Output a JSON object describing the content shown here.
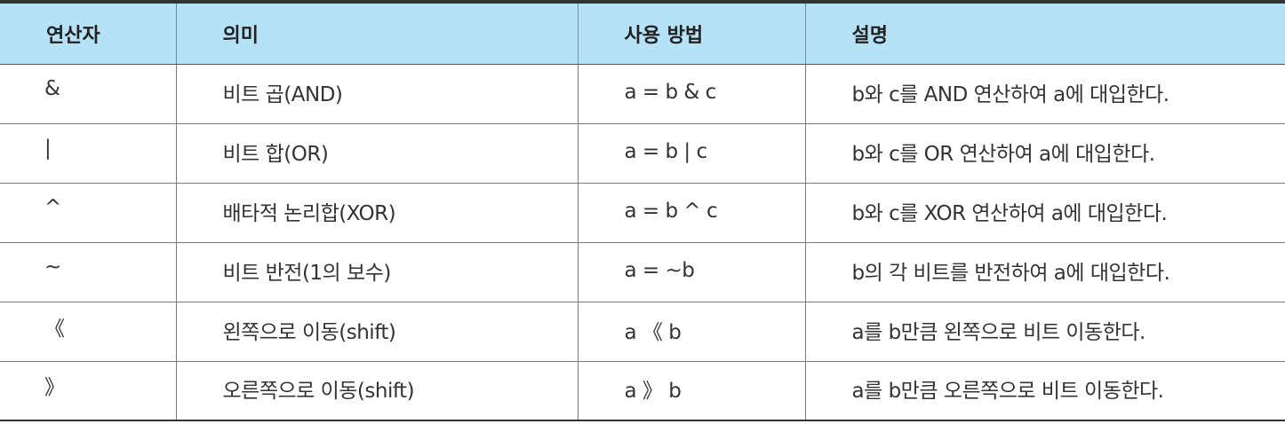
{
  "table": {
    "headers": [
      "연산자",
      "의미",
      "사용 방법",
      "설명"
    ],
    "rows": [
      [
        "&",
        "비트 곱(AND)",
        "a = b & c",
        "b와 c를 AND 연산하여 a에 대입한다."
      ],
      [
        "|",
        "비트 합(OR)",
        "a = b | c",
        "b와 c를 OR 연산하여 a에 대입한다."
      ],
      [
        "^",
        "배타적 논리합(XOR)",
        "a = b ^ c",
        "b와 c를 XOR 연산하여 a에 대입한다."
      ],
      [
        "~",
        "비트 반전(1의 보수)",
        "a = ~b",
        "b의 각 비트를 반전하여 a에 대입한다."
      ],
      [
        "《",
        "왼쪽으로 이동(shift)",
        "a 《 b",
        "a를 b만큼 왼쪽으로 비트 이동한다."
      ],
      [
        "》",
        "오른쪽으로 이동(shift)",
        "a 》 b",
        "a를 b만큼 오른쪽으로 비트 이동한다."
      ]
    ]
  },
  "colors": {
    "header_background": "#b5e2f7",
    "border": "#333333",
    "text": "#333333"
  }
}
